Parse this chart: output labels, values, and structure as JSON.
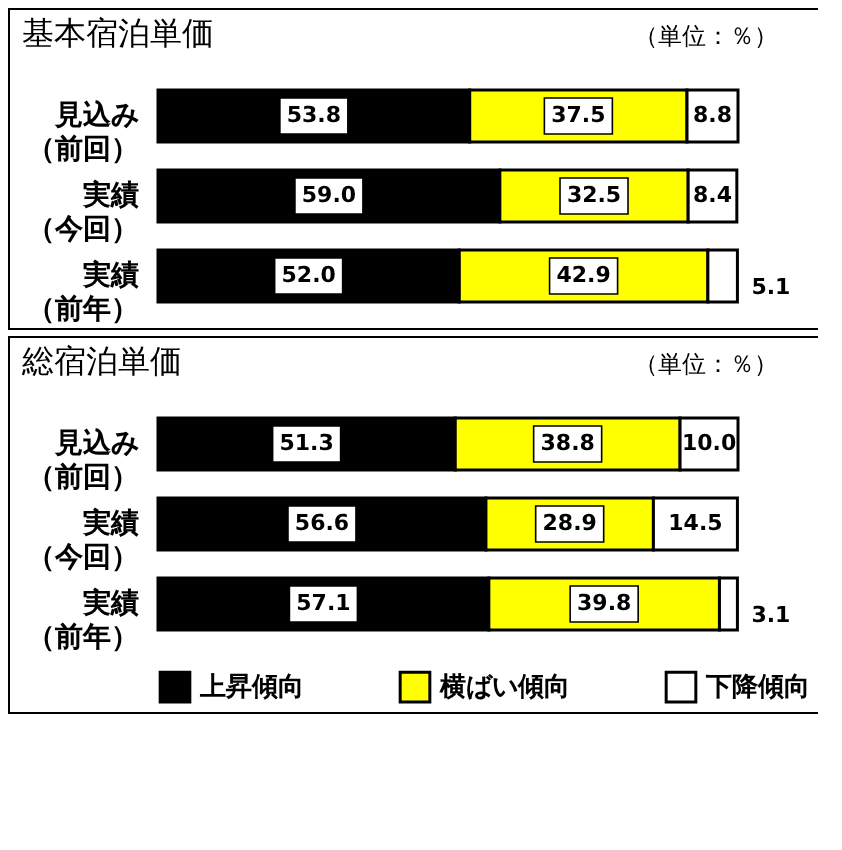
{
  "chart_data": [
    {
      "type": "bar",
      "orientation": "horizontal",
      "stacked": true,
      "title": "基本宿泊単価",
      "annotations": [
        "（単位：％）"
      ],
      "categories": [
        "見込み（前回）",
        "実績（今回）",
        "実績（前年）"
      ],
      "series": [
        {
          "color": "#000000",
          "values": [
            53.8,
            59.0,
            52.0
          ],
          "value_labels": [
            "53.8",
            "59.0",
            "52.0"
          ]
        },
        {
          "color": "#ffff00",
          "values": [
            37.5,
            32.5,
            42.9
          ],
          "value_labels": [
            "37.5",
            "32.5",
            "42.9"
          ]
        },
        {
          "color": "#ffffff",
          "values": [
            8.8,
            8.4,
            5.1
          ],
          "value_labels": [
            "8.8",
            "8.4",
            "5.1"
          ]
        }
      ]
    },
    {
      "type": "bar",
      "orientation": "horizontal",
      "stacked": true,
      "title": "総宿泊単価",
      "annotations": [
        "（単位：％）"
      ],
      "categories": [
        "見込み（前回）",
        "実績（今回）",
        "実績（前年）"
      ],
      "series": [
        {
          "name": "上昇傾向",
          "color": "#000000",
          "values": [
            51.3,
            56.6,
            57.1
          ],
          "value_labels": [
            "51.3",
            "56.6",
            "57.1"
          ]
        },
        {
          "name": "横ばい傾向",
          "color": "#ffff00",
          "values": [
            38.8,
            28.9,
            39.8
          ],
          "value_labels": [
            "38.8",
            "28.9",
            "39.8"
          ]
        },
        {
          "name": "下降傾向",
          "color": "#ffffff",
          "values": [
            10.0,
            14.5,
            3.1
          ],
          "value_labels": [
            "10.0",
            "14.5",
            "3.1"
          ]
        }
      ],
      "legend": "bottom"
    }
  ]
}
